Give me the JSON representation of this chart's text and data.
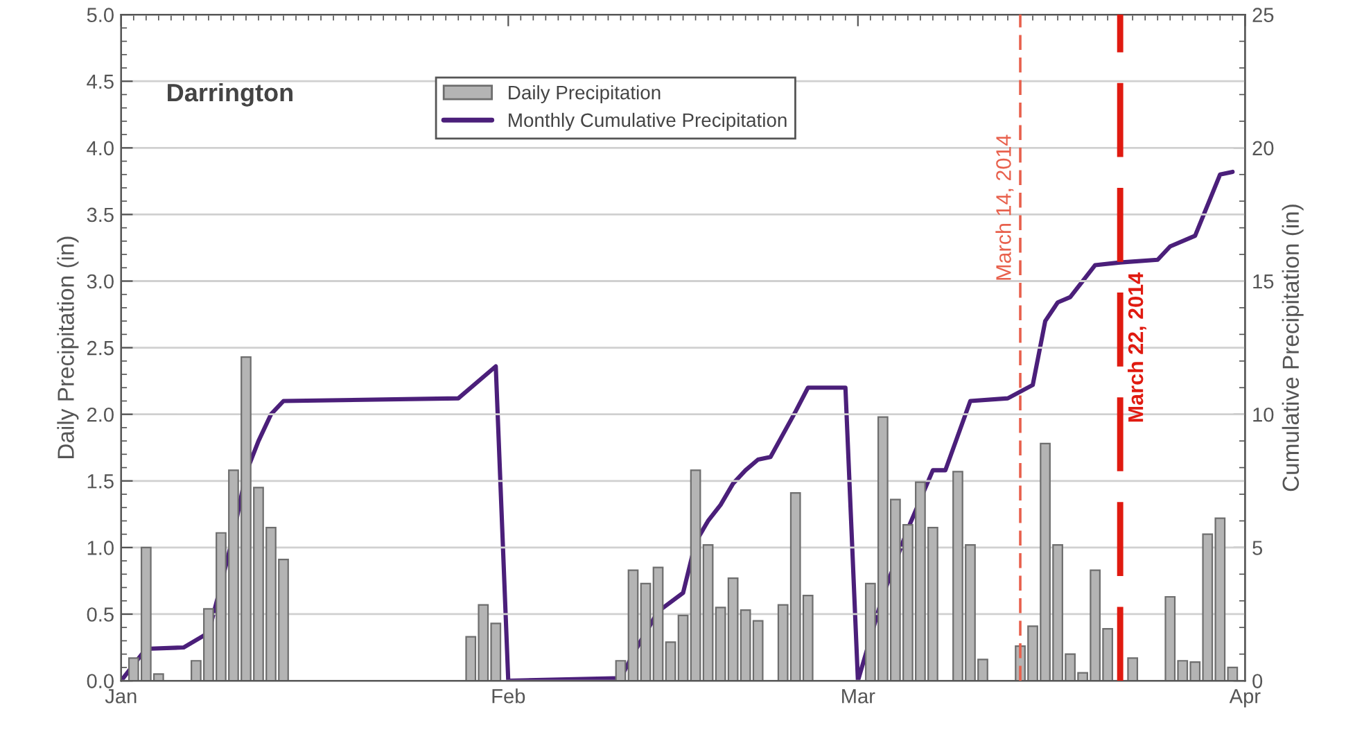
{
  "chart_data": {
    "type": "bar",
    "title": "Darrington",
    "ylabel": "Daily Precipitation (in)",
    "y2label": "Cumulative Precipitation (in)",
    "xlim": [
      "2014-01-01",
      "2014-04-01"
    ],
    "xticks": [
      {
        "value": "2014-01-01",
        "label": "Jan"
      },
      {
        "value": "2014-02-01",
        "label": "Feb"
      },
      {
        "value": "2014-03-01",
        "label": "Mar"
      },
      {
        "value": "2014-04-01",
        "label": "Apr"
      }
    ],
    "ylim": [
      0,
      5
    ],
    "yticks": [
      {
        "value": 0,
        "label": "0.0"
      },
      {
        "value": 0.5,
        "label": "0.5"
      },
      {
        "value": 1,
        "label": "1.0"
      },
      {
        "value": 1.5,
        "label": "1.5"
      },
      {
        "value": 2,
        "label": "2.0"
      },
      {
        "value": 2.5,
        "label": "2.5"
      },
      {
        "value": 3,
        "label": "3.0"
      },
      {
        "value": 3.5,
        "label": "3.5"
      },
      {
        "value": 4,
        "label": "4.0"
      },
      {
        "value": 4.5,
        "label": "4.5"
      },
      {
        "value": 5,
        "label": "5.0"
      }
    ],
    "y2lim": [
      0,
      25
    ],
    "y2ticks": [
      0,
      5,
      10,
      15,
      20,
      25
    ],
    "grid": "y",
    "legend": "top",
    "series": [
      {
        "name": "Daily Precipitation",
        "color": "#b4b4b4",
        "x": [
          "2014-01-02",
          "2014-01-03",
          "2014-01-04",
          "2014-01-07",
          "2014-01-08",
          "2014-01-09",
          "2014-01-10",
          "2014-01-11",
          "2014-01-12",
          "2014-01-13",
          "2014-01-14",
          "2014-01-29",
          "2014-01-30",
          "2014-01-31",
          "2014-02-10",
          "2014-02-11",
          "2014-02-12",
          "2014-02-13",
          "2014-02-14",
          "2014-02-15",
          "2014-02-16",
          "2014-02-17",
          "2014-02-18",
          "2014-02-19",
          "2014-02-20",
          "2014-02-21",
          "2014-02-23",
          "2014-02-24",
          "2014-02-25",
          "2014-03-02",
          "2014-03-03",
          "2014-03-04",
          "2014-03-05",
          "2014-03-06",
          "2014-03-07",
          "2014-03-09",
          "2014-03-10",
          "2014-03-11",
          "2014-03-14",
          "2014-03-15",
          "2014-03-16",
          "2014-03-17",
          "2014-03-18",
          "2014-03-19",
          "2014-03-20",
          "2014-03-21",
          "2014-03-23",
          "2014-03-26",
          "2014-03-27",
          "2014-03-28",
          "2014-03-29",
          "2014-03-30",
          "2014-03-31"
        ],
        "values": [
          0.17,
          1.0,
          0.05,
          0.15,
          0.54,
          1.11,
          1.58,
          2.43,
          1.45,
          1.15,
          0.91,
          0.33,
          0.57,
          0.43,
          0.15,
          0.83,
          0.73,
          0.85,
          0.29,
          0.49,
          1.58,
          1.02,
          0.55,
          0.77,
          0.53,
          0.45,
          0.57,
          1.41,
          0.64,
          0.73,
          1.98,
          1.36,
          1.17,
          1.49,
          1.15,
          1.57,
          1.02,
          0.16,
          0.26,
          0.41,
          1.78,
          1.02,
          0.2,
          0.06,
          0.83,
          0.39,
          0.17,
          0.63,
          0.15,
          0.14,
          1.1,
          1.22,
          0.1
        ]
      },
      {
        "name": "Monthly Cumulative Precipitation",
        "type": "line",
        "axis": "y2",
        "color": "#4b1f7a",
        "x": [
          "2014-01-01",
          "2014-01-03",
          "2014-01-06",
          "2014-01-08",
          "2014-01-09",
          "2014-01-10",
          "2014-01-11",
          "2014-01-12",
          "2014-01-13",
          "2014-01-14",
          "2014-01-28",
          "2014-01-31",
          "2014-02-01",
          "2014-02-10",
          "2014-02-11",
          "2014-02-13",
          "2014-02-15",
          "2014-02-16",
          "2014-02-17",
          "2014-02-18",
          "2014-02-19",
          "2014-02-20",
          "2014-02-21",
          "2014-02-22",
          "2014-02-24",
          "2014-02-25",
          "2014-02-28",
          "2014-03-01",
          "2014-03-03",
          "2014-03-05",
          "2014-03-07",
          "2014-03-08",
          "2014-03-10",
          "2014-03-13",
          "2014-03-15",
          "2014-03-16",
          "2014-03-17",
          "2014-03-18",
          "2014-03-20",
          "2014-03-22",
          "2014-03-25",
          "2014-03-26",
          "2014-03-28",
          "2014-03-30",
          "2014-03-31"
        ],
        "values": [
          0,
          1.2,
          1.25,
          1.8,
          3.6,
          5.5,
          7.8,
          9.0,
          10.0,
          10.5,
          10.6,
          11.8,
          0,
          0.1,
          1.0,
          2.6,
          3.3,
          5.2,
          6.0,
          6.6,
          7.4,
          7.9,
          8.3,
          8.4,
          10.1,
          11.0,
          11.0,
          0,
          3.2,
          5.7,
          7.9,
          7.9,
          10.5,
          10.6,
          11.1,
          13.5,
          14.2,
          14.4,
          15.6,
          15.7,
          15.8,
          16.3,
          16.7,
          19.0,
          19.1
        ]
      }
    ],
    "ref_lines": [
      {
        "axis": "x",
        "value": "2014-03-14",
        "label": "March 14, 2014",
        "color": "#e8604c",
        "line_style": "dashed"
      },
      {
        "axis": "x",
        "value": "2014-03-22",
        "label": "March 22, 2014",
        "color": "#e01a10",
        "line_style": "dashed"
      }
    ]
  }
}
